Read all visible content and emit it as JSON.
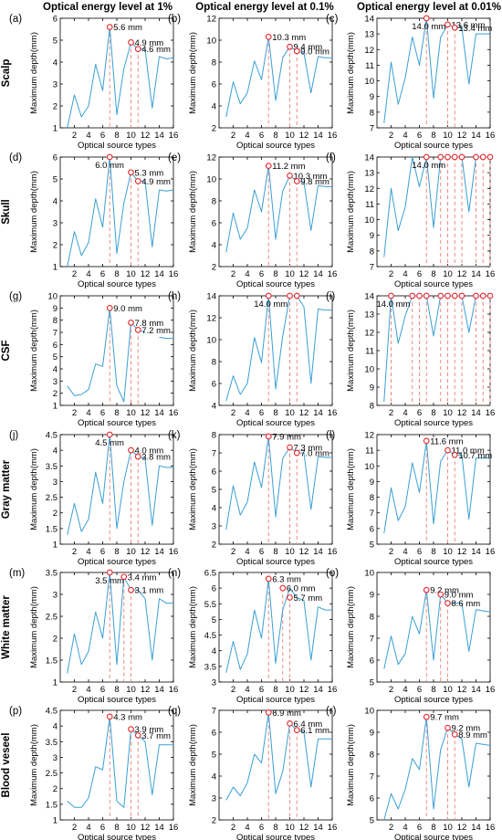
{
  "columns": [
    "Optical energy level at 1%",
    "Optical energy level at 0.1%",
    "Optical energy level at 0.01%"
  ],
  "rows": [
    "Scalp",
    "Skull",
    "CSF",
    "Gray matter",
    "White matter",
    "Blood veseel"
  ],
  "colors": {
    "line": "#3a9fd5",
    "marker": "#e8262a",
    "dashed": "#f08a80",
    "axis": "#000000"
  },
  "chart_data": [
    {
      "panel": "(a)",
      "type": "line",
      "xlabel": "",
      "ylabel": "Maximum depth(mm)",
      "ylim": [
        1,
        6
      ],
      "yticks": [
        1,
        2,
        3,
        4,
        5,
        6
      ],
      "x": [
        1,
        2,
        3,
        4,
        5,
        6,
        7,
        8,
        9,
        10,
        11,
        12,
        13,
        14,
        15,
        16
      ],
      "y": [
        1.0,
        2.5,
        1.5,
        2.0,
        3.9,
        2.7,
        5.6,
        1.6,
        3.7,
        4.9,
        4.6,
        4.6,
        1.9,
        4.25,
        4.15,
        4.2
      ],
      "markers": [
        {
          "x": 7,
          "y": 5.6,
          "label": "5.6 mm"
        },
        {
          "x": 10,
          "y": 4.9,
          "label": "4.9 mm"
        },
        {
          "x": 11,
          "y": 4.6,
          "label": "4.6 mm"
        }
      ]
    },
    {
      "panel": "(b)",
      "type": "line",
      "xlabel": "",
      "ylabel": "Maximum depth(mm)",
      "ylim": [
        2,
        12
      ],
      "yticks": [
        2,
        4,
        6,
        8,
        10,
        12
      ],
      "x": [
        1,
        2,
        3,
        4,
        5,
        6,
        7,
        8,
        9,
        10,
        11,
        12,
        13,
        14,
        15,
        16
      ],
      "y": [
        3.0,
        6.2,
        4.2,
        5.2,
        8.1,
        6.4,
        10.3,
        4.5,
        8.4,
        9.4,
        9.0,
        8.8,
        5.2,
        8.5,
        8.4,
        8.4
      ],
      "markers": [
        {
          "x": 7,
          "y": 10.3,
          "label": "10.3 mm"
        },
        {
          "x": 10,
          "y": 9.4,
          "label": "9.4 mm"
        },
        {
          "x": 11,
          "y": 9.0,
          "label": "9.0 mm"
        }
      ]
    },
    {
      "panel": "(c)",
      "type": "line",
      "xlabel": "",
      "ylabel": "Maximum depth(mm)",
      "ylim": [
        7,
        14
      ],
      "yticks": [
        7,
        8,
        9,
        10,
        11,
        12,
        13,
        14
      ],
      "x": [
        1,
        2,
        3,
        4,
        5,
        6,
        7,
        8,
        9,
        10,
        11,
        12,
        13,
        14,
        15,
        16
      ],
      "y": [
        7.3,
        11.2,
        8.5,
        10.2,
        12.8,
        11.0,
        14.0,
        8.9,
        12.8,
        13.6,
        13.4,
        13.4,
        9.8,
        13.0,
        13.0,
        13.0
      ],
      "markers": [
        {
          "x": 7,
          "y": 14.0,
          "label": "14.0 mm"
        },
        {
          "x": 10,
          "y": 13.6,
          "label": "13.6 mm"
        },
        {
          "x": 11,
          "y": 13.4,
          "label": "13.4 mm"
        }
      ]
    },
    {
      "panel": "(d)",
      "type": "line",
      "xlabel": "",
      "ylabel": "Maximum depth(mm)",
      "ylim": [
        1,
        6
      ],
      "yticks": [
        1,
        2,
        3,
        4,
        5,
        6
      ],
      "x": [
        1,
        2,
        3,
        4,
        5,
        6,
        7,
        8,
        9,
        10,
        11,
        12,
        13,
        14,
        15,
        16
      ],
      "y": [
        1.0,
        2.6,
        1.5,
        2.1,
        4.1,
        2.8,
        6.0,
        1.6,
        3.9,
        5.3,
        4.9,
        4.9,
        1.9,
        4.5,
        4.45,
        4.5
      ],
      "markers": [
        {
          "x": 7,
          "y": 6.0,
          "label": "6.0 mm"
        },
        {
          "x": 10,
          "y": 5.3,
          "label": "5.3 mm"
        },
        {
          "x": 11,
          "y": 4.9,
          "label": "4.9 mm"
        }
      ]
    },
    {
      "panel": "(e)",
      "type": "line",
      "xlabel": "",
      "ylabel": "Maximum depth(mm)",
      "ylim": [
        2,
        12
      ],
      "yticks": [
        2,
        4,
        6,
        8,
        10,
        12
      ],
      "x": [
        1,
        2,
        3,
        4,
        5,
        6,
        7,
        8,
        9,
        10,
        11,
        12,
        13,
        14,
        15,
        16
      ],
      "y": [
        3.3,
        6.9,
        4.5,
        5.5,
        9.0,
        7.0,
        11.2,
        4.5,
        8.9,
        10.3,
        9.8,
        9.7,
        5.3,
        9.4,
        9.3,
        9.3
      ],
      "markers": [
        {
          "x": 7,
          "y": 11.2,
          "label": "11.2 mm"
        },
        {
          "x": 10,
          "y": 10.3,
          "label": "10.3 mm"
        },
        {
          "x": 11,
          "y": 9.8,
          "label": "9.8 mm"
        }
      ]
    },
    {
      "panel": "(f)",
      "type": "line",
      "xlabel": "",
      "ylabel": "Maximum depth(mm)",
      "ylim": [
        7,
        14
      ],
      "yticks": [
        7,
        8,
        9,
        10,
        11,
        12,
        13,
        14
      ],
      "x": [
        1,
        2,
        3,
        4,
        5,
        6,
        7,
        8,
        9,
        10,
        11,
        12,
        13,
        14,
        15,
        16
      ],
      "y": [
        7.6,
        12.0,
        9.3,
        10.8,
        14.0,
        12.1,
        14.0,
        9.5,
        14.0,
        14.0,
        14.0,
        14.0,
        10.5,
        14.0,
        14.0,
        14.0
      ],
      "markers": [
        {
          "x": 7,
          "y": 14.0,
          "label": "14.0 mm"
        },
        {
          "x": 9,
          "y": 14.0,
          "label": ""
        },
        {
          "x": 10,
          "y": 14.0,
          "label": ""
        },
        {
          "x": 11,
          "y": 14.0,
          "label": ""
        },
        {
          "x": 12,
          "y": 14.0,
          "label": ""
        },
        {
          "x": 14,
          "y": 14.0,
          "label": ""
        },
        {
          "x": 15,
          "y": 14.0,
          "label": ""
        },
        {
          "x": 16,
          "y": 14.0,
          "label": ""
        }
      ]
    },
    {
      "panel": "(g)",
      "type": "line",
      "xlabel": "",
      "ylabel": "Maximum depth(mm)",
      "ylim": [
        1,
        10
      ],
      "yticks": [
        1,
        2,
        3,
        4,
        5,
        6,
        7,
        8,
        9,
        10
      ],
      "x": [
        1,
        2,
        3,
        4,
        5,
        6,
        7,
        8,
        9,
        10,
        11,
        12,
        13,
        14,
        15,
        16
      ],
      "y": [
        2.6,
        1.8,
        1.9,
        2.3,
        4.4,
        4.2,
        9.0,
        2.6,
        1.3,
        7.8,
        7.2,
        7.0,
        null,
        6.6,
        6.5,
        6.5
      ],
      "markers": [
        {
          "x": 7,
          "y": 9.0,
          "label": "9.0 mm"
        },
        {
          "x": 10,
          "y": 7.8,
          "label": "7.8 mm"
        },
        {
          "x": 11,
          "y": 7.2,
          "label": "7.2 mm"
        }
      ]
    },
    {
      "panel": "(h)",
      "type": "line",
      "xlabel": "",
      "ylabel": "Maximum depth(mm)",
      "ylim": [
        4,
        14
      ],
      "yticks": [
        4,
        6,
        8,
        10,
        12,
        14
      ],
      "x": [
        1,
        2,
        3,
        4,
        5,
        6,
        7,
        8,
        9,
        10,
        11,
        12,
        13,
        14,
        15,
        16
      ],
      "y": [
        4.4,
        6.7,
        5.0,
        6.0,
        10.2,
        7.9,
        14.0,
        5.5,
        10.3,
        14.0,
        14.0,
        13.0,
        6.0,
        12.8,
        12.7,
        12.7
      ],
      "markers": [
        {
          "x": 7,
          "y": 14.0,
          "label": "14.0 mm"
        },
        {
          "x": 10,
          "y": 14.0,
          "label": ""
        },
        {
          "x": 11,
          "y": 14.0,
          "label": ""
        }
      ]
    },
    {
      "panel": "(i)",
      "type": "line",
      "xlabel": "",
      "ylabel": "Maximum depth(mm)",
      "ylim": [
        8,
        14
      ],
      "yticks": [
        8,
        9,
        10,
        11,
        12,
        13,
        14
      ],
      "x": [
        1,
        2,
        3,
        4,
        5,
        6,
        7,
        8,
        9,
        10,
        11,
        12,
        13,
        14,
        15,
        16
      ],
      "y": [
        8.2,
        14.0,
        11.4,
        12.9,
        14.0,
        14.0,
        14.0,
        11.8,
        14.0,
        14.0,
        14.0,
        14.0,
        12.0,
        14.0,
        14.0,
        14.0
      ],
      "markers": [
        {
          "x": 2,
          "y": 14.0,
          "label": "14.0 mm"
        },
        {
          "x": 5,
          "y": 14.0,
          "label": ""
        },
        {
          "x": 6,
          "y": 14.0,
          "label": ""
        },
        {
          "x": 7,
          "y": 14.0,
          "label": ""
        },
        {
          "x": 9,
          "y": 14.0,
          "label": ""
        },
        {
          "x": 10,
          "y": 14.0,
          "label": ""
        },
        {
          "x": 11,
          "y": 14.0,
          "label": ""
        },
        {
          "x": 12,
          "y": 14.0,
          "label": ""
        },
        {
          "x": 14,
          "y": 14.0,
          "label": ""
        },
        {
          "x": 15,
          "y": 14.0,
          "label": ""
        },
        {
          "x": 16,
          "y": 14.0,
          "label": ""
        }
      ]
    },
    {
      "panel": "(j)",
      "type": "line",
      "xlabel": "",
      "ylabel": "Maximum depth(mm)",
      "ylim": [
        1,
        4.5
      ],
      "yticks": [
        1,
        1.5,
        2,
        2.5,
        3,
        3.5,
        4,
        4.5
      ],
      "x": [
        1,
        2,
        3,
        4,
        5,
        6,
        7,
        8,
        9,
        10,
        11,
        12,
        13,
        14,
        15,
        16
      ],
      "y": [
        1.3,
        2.3,
        1.4,
        1.8,
        3.3,
        2.3,
        4.5,
        1.5,
        3.0,
        4.0,
        3.8,
        3.75,
        1.6,
        3.5,
        3.45,
        3.45
      ],
      "markers": [
        {
          "x": 7,
          "y": 4.5,
          "label": "4.5 mm"
        },
        {
          "x": 10,
          "y": 4.0,
          "label": "4.0 mm"
        },
        {
          "x": 11,
          "y": 3.8,
          "label": "3.8 mm"
        }
      ]
    },
    {
      "panel": "(k)",
      "type": "line",
      "xlabel": "",
      "ylabel": "Maximum depth(mm)",
      "ylim": [
        2,
        8
      ],
      "yticks": [
        2,
        3,
        4,
        5,
        6,
        7,
        8
      ],
      "x": [
        1,
        2,
        3,
        4,
        5,
        6,
        7,
        8,
        9,
        10,
        11,
        12,
        13,
        14,
        15,
        16
      ],
      "y": [
        2.8,
        5.2,
        3.6,
        4.3,
        6.5,
        5.1,
        7.9,
        3.5,
        6.7,
        7.3,
        7.0,
        7.0,
        3.9,
        6.8,
        6.75,
        6.75
      ],
      "markers": [
        {
          "x": 7,
          "y": 7.9,
          "label": "7.9 mm"
        },
        {
          "x": 10,
          "y": 7.3,
          "label": "7.3 mm"
        },
        {
          "x": 11,
          "y": 7.0,
          "label": "7.0 mm"
        }
      ]
    },
    {
      "panel": "(l)",
      "type": "line",
      "xlabel": "",
      "ylabel": "Maximum depth(mm)",
      "ylim": [
        5,
        12
      ],
      "yticks": [
        5,
        6,
        7,
        8,
        9,
        10,
        11,
        12
      ],
      "x": [
        1,
        2,
        3,
        4,
        5,
        6,
        7,
        8,
        9,
        10,
        11,
        12,
        13,
        14,
        15,
        16
      ],
      "y": [
        5.7,
        8.6,
        6.5,
        7.4,
        10.2,
        8.3,
        11.6,
        6.3,
        10.3,
        11.0,
        10.7,
        10.7,
        6.6,
        10.5,
        10.5,
        10.5
      ],
      "markers": [
        {
          "x": 7,
          "y": 11.6,
          "label": "11.6 mm"
        },
        {
          "x": 10,
          "y": 11.0,
          "label": "11.0 mm"
        },
        {
          "x": 11,
          "y": 10.7,
          "label": "10.7 mm"
        }
      ]
    },
    {
      "panel": "(m)",
      "type": "line",
      "xlabel": "",
      "ylabel": "Maximum depth(mm)",
      "ylim": [
        1,
        3.5
      ],
      "yticks": [
        1,
        1.5,
        2,
        2.5,
        3,
        3.5
      ],
      "x": [
        1,
        2,
        3,
        4,
        5,
        6,
        7,
        8,
        9,
        10,
        11,
        12,
        13,
        14,
        15,
        16
      ],
      "y": [
        1.2,
        2.1,
        1.4,
        1.7,
        2.6,
        2.0,
        3.5,
        1.4,
        3.4,
        3.1,
        3.1,
        2.9,
        1.5,
        2.9,
        2.8,
        2.8
      ],
      "markers": [
        {
          "x": 7,
          "y": 3.5,
          "label": "3.5 mm"
        },
        {
          "x": 9,
          "y": 3.4,
          "label": "3.4 mm"
        },
        {
          "x": 10,
          "y": 3.1,
          "label": "3.1 mm"
        }
      ]
    },
    {
      "panel": "(n)",
      "type": "line",
      "xlabel": "",
      "ylabel": "Maximum depth(mm)",
      "ylim": [
        3,
        6.5
      ],
      "yticks": [
        3,
        3.5,
        4,
        4.5,
        5,
        5.5,
        6,
        6.5
      ],
      "x": [
        1,
        2,
        3,
        4,
        5,
        6,
        7,
        8,
        9,
        10,
        11,
        12,
        13,
        14,
        15,
        16
      ],
      "y": [
        3.3,
        4.3,
        3.4,
        3.9,
        5.3,
        4.4,
        6.3,
        3.6,
        5.3,
        6.0,
        5.7,
        5.6,
        3.7,
        5.4,
        5.3,
        5.3
      ],
      "markers": [
        {
          "x": 7,
          "y": 6.3,
          "label": "6.3 mm"
        },
        {
          "x": 9,
          "y": 6.0,
          "label": "6.0 mm"
        },
        {
          "x": 10,
          "y": 5.7,
          "label": "5.7 mm"
        }
      ]
    },
    {
      "panel": "(o)",
      "type": "line",
      "xlabel": "",
      "ylabel": "Maximum depth(mm)",
      "ylim": [
        5,
        10
      ],
      "yticks": [
        5,
        6,
        7,
        8,
        9,
        10
      ],
      "x": [
        1,
        2,
        3,
        4,
        5,
        6,
        7,
        8,
        9,
        10,
        11,
        12,
        13,
        14,
        15,
        16
      ],
      "y": [
        5.6,
        7.1,
        5.8,
        6.3,
        8.0,
        7.2,
        9.2,
        6.0,
        9.0,
        8.6,
        8.6,
        8.6,
        6.4,
        8.3,
        8.25,
        8.2
      ],
      "markers": [
        {
          "x": 7,
          "y": 9.2,
          "label": "9.2 mm"
        },
        {
          "x": 9,
          "y": 9.0,
          "label": "9.0 mm"
        },
        {
          "x": 10,
          "y": 8.6,
          "label": "8.6 mm"
        }
      ]
    },
    {
      "panel": "(p)",
      "type": "line",
      "xlabel": "",
      "ylabel": "Maximum depth(mm)",
      "ylim": [
        1,
        4.5
      ],
      "yticks": [
        1,
        1.5,
        2,
        2.5,
        3,
        3.5,
        4,
        4.5
      ],
      "x": [
        1,
        2,
        3,
        4,
        5,
        6,
        7,
        8,
        9,
        10,
        11,
        12,
        13,
        14,
        15,
        16
      ],
      "y": [
        1.6,
        1.4,
        1.4,
        1.7,
        2.7,
        2.6,
        4.3,
        1.6,
        1.4,
        3.9,
        3.7,
        3.5,
        1.8,
        3.4,
        3.4,
        3.4
      ],
      "markers": [
        {
          "x": 7,
          "y": 4.3,
          "label": "4.3 mm"
        },
        {
          "x": 10,
          "y": 3.9,
          "label": "3.9 mm"
        },
        {
          "x": 11,
          "y": 3.7,
          "label": "3.7 mm"
        }
      ]
    },
    {
      "panel": "(q)",
      "type": "line",
      "xlabel": "",
      "ylabel": "Maximum depth(mm)",
      "ylim": [
        2,
        7
      ],
      "yticks": [
        2,
        3,
        4,
        5,
        6,
        7
      ],
      "x": [
        1,
        2,
        3,
        4,
        5,
        6,
        7,
        8,
        9,
        10,
        11,
        12,
        13,
        14,
        15,
        16
      ],
      "y": [
        2.9,
        3.5,
        3.1,
        3.7,
        5.0,
        4.6,
        6.9,
        3.2,
        4.2,
        6.4,
        6.1,
        6.0,
        3.5,
        5.7,
        5.7,
        5.7
      ],
      "markers": [
        {
          "x": 7,
          "y": 6.9,
          "label": "6.9 mm"
        },
        {
          "x": 10,
          "y": 6.4,
          "label": "6.4 mm"
        },
        {
          "x": 11,
          "y": 6.1,
          "label": "6.1 mm"
        }
      ]
    },
    {
      "panel": "(r)",
      "type": "line",
      "xlabel": "Optical source types",
      "ylabel": "Maximum depth(mm)",
      "ylim": [
        5,
        10
      ],
      "yticks": [
        5,
        6,
        7,
        8,
        9,
        10
      ],
      "x": [
        1,
        2,
        3,
        4,
        5,
        6,
        7,
        8,
        9,
        10,
        11,
        12,
        13,
        14,
        15,
        16
      ],
      "y": [
        5.0,
        6.2,
        5.5,
        6.4,
        7.8,
        7.3,
        9.7,
        5.5,
        8.2,
        9.2,
        8.9,
        8.7,
        6.5,
        8.5,
        8.45,
        8.4
      ],
      "markers": [
        {
          "x": 7,
          "y": 9.7,
          "label": "9.7 mm"
        },
        {
          "x": 10,
          "y": 9.2,
          "label": "9.2 mm"
        },
        {
          "x": 11,
          "y": 8.9,
          "label": "8.9 mm"
        }
      ]
    }
  ],
  "xaxis": {
    "label": "Optical source types",
    "ticks": [
      2,
      4,
      6,
      8,
      10,
      12,
      14,
      16
    ],
    "xlim": [
      0,
      16
    ]
  }
}
